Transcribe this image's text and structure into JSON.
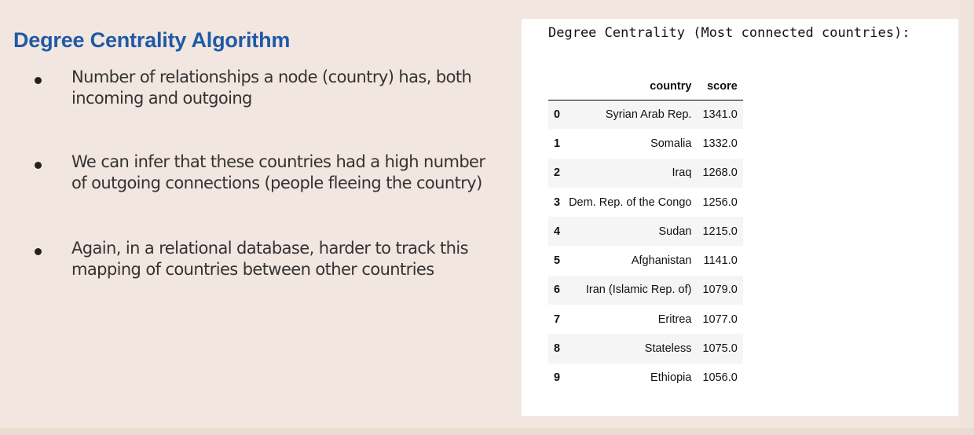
{
  "slide": {
    "title": "Degree Centrality Algorithm",
    "bullets": [
      "Number of relationships a node (country) has, both incoming and outgoing",
      "We can infer that these countries had a high number of outgoing connections (people fleeing the country)",
      "Again, in a relational database, harder to track this mapping of countries between other countries"
    ]
  },
  "output": {
    "heading": "Degree Centrality (Most connected countries):",
    "columns": [
      "",
      "country",
      "score"
    ],
    "rows": [
      {
        "index": "0",
        "country": "Syrian Arab Rep.",
        "score": "1341.0"
      },
      {
        "index": "1",
        "country": "Somalia",
        "score": "1332.0"
      },
      {
        "index": "2",
        "country": "Iraq",
        "score": "1268.0"
      },
      {
        "index": "3",
        "country": "Dem. Rep. of the Congo",
        "score": "1256.0"
      },
      {
        "index": "4",
        "country": "Sudan",
        "score": "1215.0"
      },
      {
        "index": "5",
        "country": "Afghanistan",
        "score": "1141.0"
      },
      {
        "index": "6",
        "country": "Iran (Islamic Rep. of)",
        "score": "1079.0"
      },
      {
        "index": "7",
        "country": "Eritrea",
        "score": "1077.0"
      },
      {
        "index": "8",
        "country": "Stateless",
        "score": "1075.0"
      },
      {
        "index": "9",
        "country": "Ethiopia",
        "score": "1056.0"
      }
    ]
  },
  "colors": {
    "title": "#1f5aa6",
    "background": "#f2e6e0",
    "body_text": "#333333"
  }
}
